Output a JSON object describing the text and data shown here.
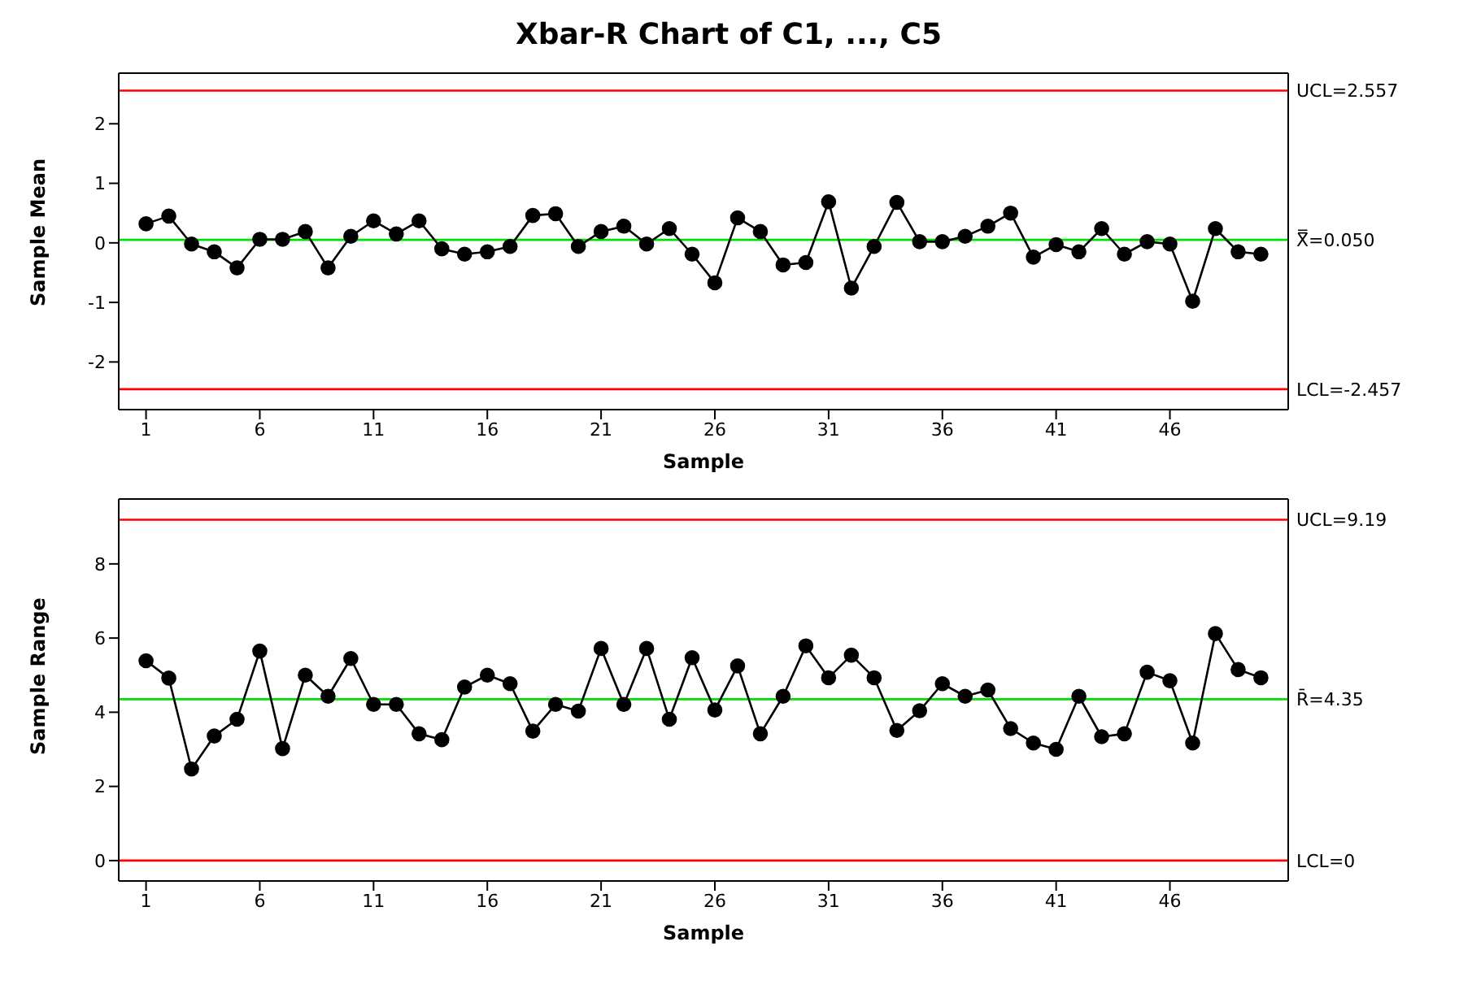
{
  "chart_data": [
    {
      "type": "line",
      "title": "Xbar-R Chart of C1, ..., C5",
      "xlabel": "Sample",
      "ylabel": "Sample Mean",
      "x": [
        1,
        2,
        3,
        4,
        5,
        6,
        7,
        8,
        9,
        10,
        11,
        12,
        13,
        14,
        15,
        16,
        17,
        18,
        19,
        20,
        21,
        22,
        23,
        24,
        25,
        26,
        27,
        28,
        29,
        30,
        31,
        32,
        33,
        34,
        35,
        36,
        37,
        38,
        39,
        40,
        41,
        42,
        43,
        44,
        45,
        46,
        47,
        48,
        49,
        50
      ],
      "series": [
        {
          "color": "#000000",
          "values": [
            0.32,
            0.45,
            -0.02,
            -0.15,
            -0.42,
            0.06,
            0.06,
            0.19,
            -0.42,
            0.11,
            0.37,
            0.15,
            0.37,
            -0.1,
            -0.19,
            -0.15,
            -0.06,
            0.46,
            0.49,
            -0.06,
            0.19,
            0.28,
            -0.02,
            0.24,
            -0.19,
            -0.67,
            0.42,
            0.19,
            -0.37,
            -0.33,
            0.69,
            -0.76,
            -0.06,
            0.68,
            0.02,
            0.02,
            0.11,
            0.28,
            0.5,
            -0.24,
            -0.03,
            -0.15,
            0.24,
            -0.19,
            0.02,
            -0.02,
            -0.98,
            0.24,
            -0.15,
            -0.19
          ]
        }
      ],
      "xlim": [
        -0.2,
        51.2
      ],
      "xticks": [
        1,
        6,
        11,
        16,
        21,
        26,
        31,
        36,
        41,
        46
      ],
      "ylim": [
        -2.8,
        2.85
      ],
      "yticks": [
        -2,
        -1,
        0,
        1,
        2
      ],
      "ref_lines": [
        {
          "axis": "y",
          "value": 2.557,
          "label": "UCL=2.557",
          "color": "#ff0000"
        },
        {
          "axis": "y",
          "value": 0.05,
          "label": "X̿=0.050",
          "color": "#00e000"
        },
        {
          "axis": "y",
          "value": -2.457,
          "label": "LCL=-2.457",
          "color": "#ff0000"
        }
      ],
      "marker": "circle",
      "line_style": "solid",
      "grid": false,
      "legend": false
    },
    {
      "type": "line",
      "xlabel": "Sample",
      "ylabel": "Sample Range",
      "x": [
        1,
        2,
        3,
        4,
        5,
        6,
        7,
        8,
        9,
        10,
        11,
        12,
        13,
        14,
        15,
        16,
        17,
        18,
        19,
        20,
        21,
        22,
        23,
        24,
        25,
        26,
        27,
        28,
        29,
        30,
        31,
        32,
        33,
        34,
        35,
        36,
        37,
        38,
        39,
        40,
        41,
        42,
        43,
        44,
        45,
        46,
        47,
        48,
        49,
        50
      ],
      "series": [
        {
          "color": "#000000",
          "values": [
            5.39,
            4.92,
            2.47,
            3.36,
            3.81,
            5.65,
            3.02,
            5.0,
            4.43,
            5.45,
            4.21,
            4.21,
            3.42,
            3.26,
            4.68,
            5.0,
            4.77,
            3.49,
            4.21,
            4.03,
            5.72,
            4.21,
            5.72,
            3.81,
            5.47,
            4.06,
            5.25,
            3.42,
            4.43,
            5.79,
            4.93,
            5.54,
            4.93,
            3.51,
            4.04,
            4.77,
            4.43,
            4.6,
            3.56,
            3.17,
            3.0,
            4.43,
            3.34,
            3.42,
            5.08,
            4.85,
            3.17,
            6.12,
            5.15,
            4.93
          ]
        }
      ],
      "xlim": [
        -0.2,
        51.2
      ],
      "xticks": [
        1,
        6,
        11,
        16,
        21,
        26,
        31,
        36,
        41,
        46
      ],
      "ylim": [
        -0.55,
        9.75
      ],
      "yticks": [
        0,
        2,
        4,
        6,
        8
      ],
      "ref_lines": [
        {
          "axis": "y",
          "value": 9.19,
          "label": "UCL=9.19",
          "color": "#ff0000"
        },
        {
          "axis": "y",
          "value": 4.35,
          "label": "R̄=4.35",
          "color": "#00e000"
        },
        {
          "axis": "y",
          "value": 0,
          "label": "LCL=0",
          "color": "#ff0000"
        }
      ],
      "marker": "circle",
      "line_style": "solid",
      "grid": false,
      "legend": false
    }
  ]
}
